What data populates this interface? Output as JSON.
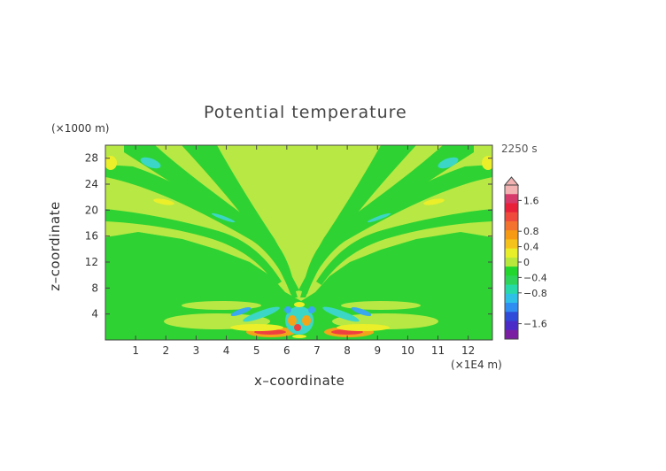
{
  "title": "Potential temperature",
  "time_label": "2250 s",
  "y_unit": "(×1000 m)",
  "x_unit": "(×1E4 m)",
  "chart_data": {
    "type": "heatmap",
    "title": "Potential temperature",
    "xlabel": "x–coordinate",
    "ylabel": "z–coordinate",
    "x_ticks": [
      "1",
      "2",
      "3",
      "4",
      "5",
      "6",
      "7",
      "8",
      "9",
      "10",
      "11",
      "12"
    ],
    "y_ticks": [
      "4",
      "8",
      "12",
      "16",
      "20",
      "24",
      "28"
    ],
    "xlim": [
      0,
      12.8
    ],
    "ylim": [
      0,
      30
    ],
    "colorbar": {
      "ticks": [
        "1.6",
        "0.8",
        "0.4",
        "0",
        "−0.4",
        "−0.8",
        "−1.6"
      ],
      "tick_values": [
        1.6,
        0.8,
        0.4,
        0,
        -0.4,
        -0.8,
        -1.6
      ],
      "range": [
        -2.0,
        2.0
      ],
      "colors": [
        "#7a1fa2",
        "#4b2bc8",
        "#2f4ad8",
        "#2f8cf0",
        "#2fc0e8",
        "#27d9a8",
        "#2ed35a",
        "#22d62e",
        "#b9e83c",
        "#e8ee2a",
        "#f5c21c",
        "#f59a12",
        "#f2722e",
        "#ef4a3c",
        "#e8203a",
        "#d63a6b",
        "#f2b2b2"
      ]
    }
  }
}
